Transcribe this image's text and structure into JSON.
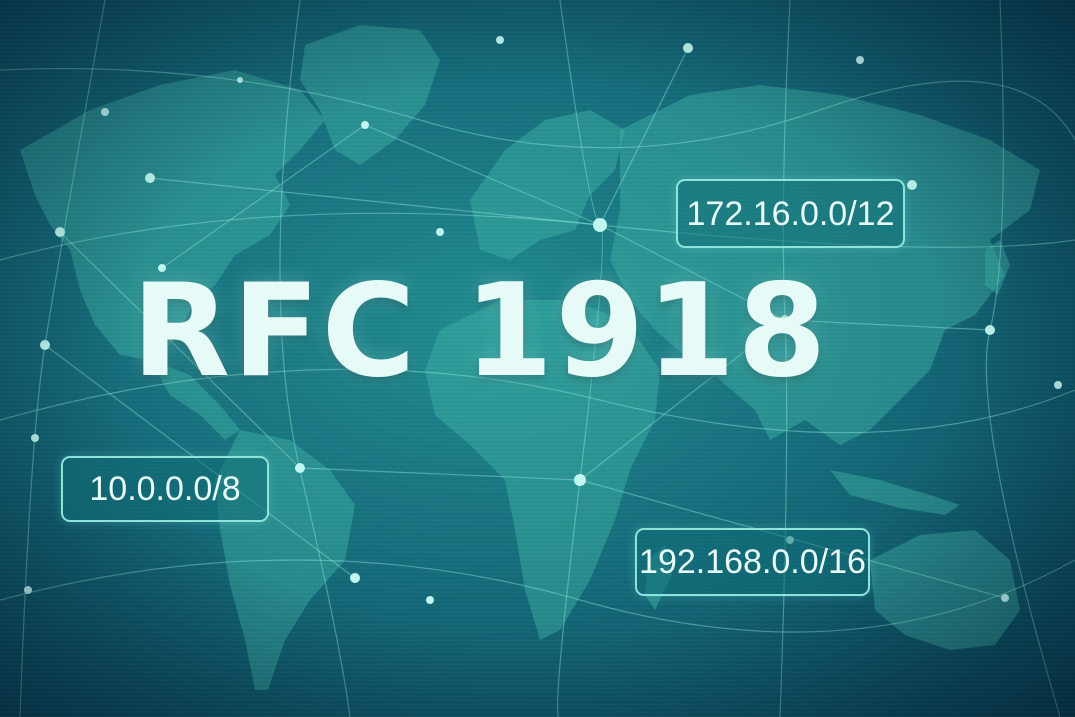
{
  "title": "RFC 1918",
  "ranges": [
    {
      "label": "10.0.0.0/8"
    },
    {
      "label": "172.16.0.0/12"
    },
    {
      "label": "192.168.0.0/16"
    }
  ],
  "colors": {
    "background": "#0c5366",
    "land": "#3fb3a6",
    "network": "#8fe3da",
    "text": "#e6fbf8"
  }
}
